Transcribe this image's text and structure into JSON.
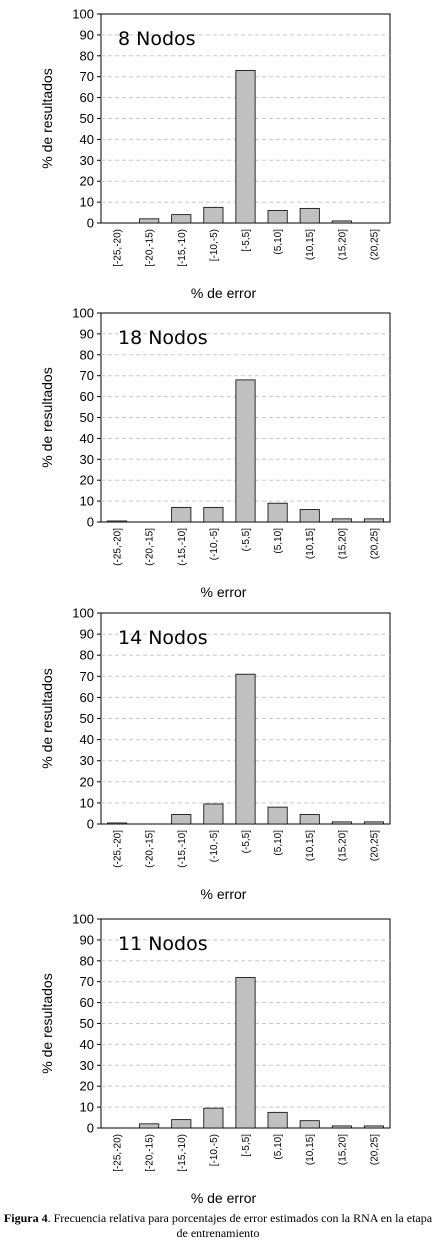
{
  "chart_data": [
    {
      "type": "bar",
      "title": "8 Nodos",
      "xlabel": "% de error",
      "ylabel": "% de resultados",
      "ylim": [
        0,
        100
      ],
      "yticks": [
        0,
        10,
        20,
        30,
        40,
        50,
        60,
        70,
        80,
        90,
        100
      ],
      "grid": true,
      "categories": [
        "[-25,-20)",
        "[-20,-15)",
        "[-15,-10)",
        "[-10,-5)",
        "[-5,5]",
        "(5,10]",
        "(10,15]",
        "(15,20]",
        "(20,25]"
      ],
      "values": [
        0,
        2,
        4,
        7.5,
        73,
        6,
        7,
        1,
        0
      ],
      "bar_color": "#c0c0c0"
    },
    {
      "type": "bar",
      "title": "18 Nodos",
      "xlabel": "% error",
      "ylabel": "% de resultados",
      "ylim": [
        0,
        100
      ],
      "yticks": [
        0,
        10,
        20,
        30,
        40,
        50,
        60,
        70,
        80,
        90,
        100
      ],
      "grid": true,
      "categories": [
        "(-25,-20]",
        "(-20,-15]",
        "(-15,-10]",
        "(-10,-5]",
        "(-5,5]",
        "(5,10]",
        "(10,15]",
        "(15,20]",
        "(20,25]"
      ],
      "values": [
        0.5,
        0,
        7,
        7,
        68,
        9,
        6,
        1.5,
        1.5
      ],
      "bar_color": "#c0c0c0"
    },
    {
      "type": "bar",
      "title": "14 Nodos",
      "xlabel": "% error",
      "ylabel": "% de resultados",
      "ylim": [
        0,
        100
      ],
      "yticks": [
        0,
        10,
        20,
        30,
        40,
        50,
        60,
        70,
        80,
        90,
        100
      ],
      "grid": true,
      "categories": [
        "(-25,-20]",
        "(-20,-15]",
        "(-15,-10]",
        "(-10,-5]",
        "(-5,5]",
        "(5,10]",
        "(10,15]",
        "(15,20]",
        "(20,25]"
      ],
      "values": [
        0.5,
        0,
        4.5,
        9.5,
        71,
        8,
        4.5,
        1,
        1
      ],
      "bar_color": "#c0c0c0"
    },
    {
      "type": "bar",
      "title": "11 Nodos",
      "xlabel": "% de error",
      "ylabel": "% de resultados",
      "ylim": [
        0,
        100
      ],
      "yticks": [
        0,
        10,
        20,
        30,
        40,
        50,
        60,
        70,
        80,
        90,
        100
      ],
      "grid": true,
      "categories": [
        "[-25,-20)",
        "[-20,-15)",
        "[-15,-10)",
        "[-10,-5)",
        "[-5,5]",
        "(5,10]",
        "(10,15]",
        "(15,20]",
        "(20,25]"
      ],
      "values": [
        0,
        2,
        4,
        9.5,
        72,
        7.5,
        3.5,
        1,
        1
      ],
      "bar_color": "#c0c0c0"
    }
  ],
  "caption": {
    "label": "Figura 4",
    "text": ". Frecuencia relativa para porcentajes de error estimados con la RNA en la etapa de entrenamiento"
  }
}
